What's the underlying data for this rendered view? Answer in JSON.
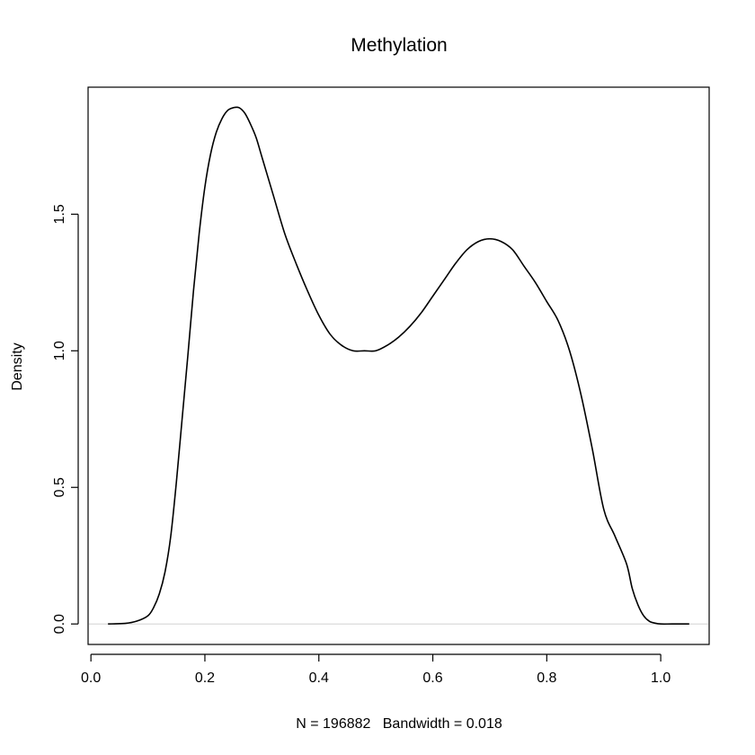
{
  "chart_data": {
    "type": "line",
    "title": "Methylation",
    "xlabel": "N = 196882   Bandwidth = 0.018",
    "ylabel": "Density",
    "xlim": [
      -0.005,
      1.085
    ],
    "ylim": [
      -0.075,
      1.965
    ],
    "xticks": [
      0.0,
      0.2,
      0.4,
      0.6,
      0.8,
      1.0
    ],
    "xtick_labels": [
      "0.0",
      "0.2",
      "0.4",
      "0.6",
      "0.8",
      "1.0"
    ],
    "yticks": [
      0.0,
      0.5,
      1.0,
      1.5
    ],
    "ytick_labels": [
      "0.0",
      "0.5",
      "1.0",
      "1.5"
    ],
    "grid": false,
    "baseline": 0,
    "series": [
      {
        "x": [
          0.03,
          0.06,
          0.08,
          0.1,
          0.11,
          0.12,
          0.13,
          0.14,
          0.15,
          0.16,
          0.17,
          0.18,
          0.19,
          0.2,
          0.21,
          0.22,
          0.23,
          0.24,
          0.25,
          0.26,
          0.27,
          0.28,
          0.29,
          0.3,
          0.32,
          0.34,
          0.36,
          0.38,
          0.4,
          0.42,
          0.44,
          0.46,
          0.48,
          0.5,
          0.52,
          0.54,
          0.56,
          0.58,
          0.6,
          0.62,
          0.64,
          0.66,
          0.68,
          0.7,
          0.72,
          0.74,
          0.76,
          0.78,
          0.8,
          0.82,
          0.84,
          0.86,
          0.88,
          0.9,
          0.92,
          0.94,
          0.95,
          0.96,
          0.97,
          0.98,
          0.99,
          1.0,
          1.02,
          1.05
        ],
        "y": [
          0.0,
          0.002,
          0.01,
          0.03,
          0.06,
          0.11,
          0.19,
          0.32,
          0.52,
          0.75,
          0.98,
          1.22,
          1.43,
          1.6,
          1.72,
          1.8,
          1.85,
          1.88,
          1.89,
          1.89,
          1.87,
          1.83,
          1.78,
          1.71,
          1.57,
          1.43,
          1.32,
          1.22,
          1.13,
          1.06,
          1.02,
          1.0,
          1.0,
          1.0,
          1.02,
          1.05,
          1.09,
          1.14,
          1.2,
          1.26,
          1.32,
          1.37,
          1.4,
          1.41,
          1.4,
          1.37,
          1.31,
          1.25,
          1.18,
          1.11,
          1.0,
          0.84,
          0.64,
          0.42,
          0.32,
          0.22,
          0.13,
          0.07,
          0.03,
          0.01,
          0.003,
          0.0,
          0.0,
          0.0
        ]
      }
    ]
  }
}
